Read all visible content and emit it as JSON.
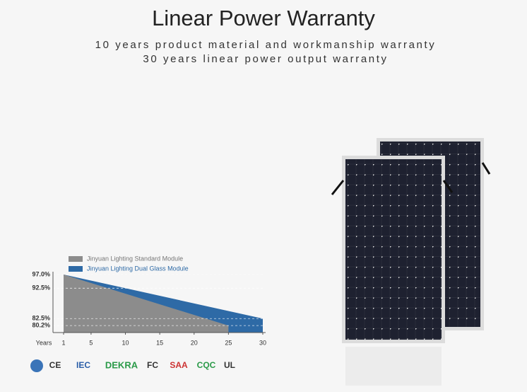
{
  "header": {
    "title": "Linear Power Warranty",
    "subtitles": [
      "10 years product material and workmanship warranty",
      "30 years linear power output warranty"
    ]
  },
  "chart_data": {
    "type": "area",
    "x_label": "Years",
    "series": [
      {
        "name": "Jinyuan Lighting Dual Glass Module",
        "color": "#2e6aa6",
        "x": [
          1,
          30
        ],
        "values": [
          97.0,
          82.5
        ]
      },
      {
        "name": "Jinyuan Lighting Standard Module",
        "color": "#8c8c8c",
        "x": [
          1,
          25
        ],
        "values": [
          97.0,
          80.2
        ]
      }
    ],
    "xlim": [
      1,
      30
    ],
    "xticks": [
      1,
      5,
      10,
      15,
      20,
      25,
      30
    ],
    "ylim": [
      77.9,
      97.0
    ],
    "yticks": [
      {
        "value": 97.0,
        "label": "97.0%"
      },
      {
        "value": 92.5,
        "label": "92.5%"
      },
      {
        "value": 82.5,
        "label": "82.5%"
      },
      {
        "value": 80.2,
        "label": "80.2%"
      }
    ]
  },
  "certifications": [
    "CE",
    "IEC",
    "DEKRA",
    "FC",
    "SAA",
    "CQC",
    "UL"
  ]
}
